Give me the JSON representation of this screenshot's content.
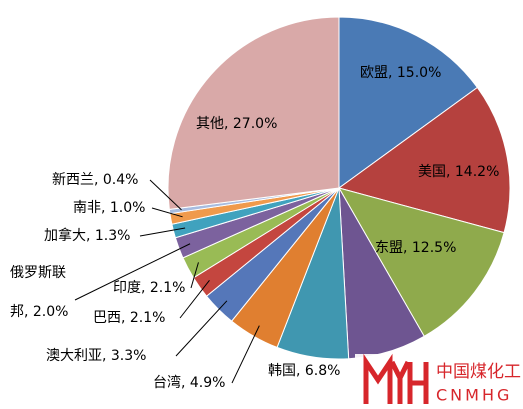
{
  "chart_data": {
    "type": "pie",
    "categories": [
      "欧盟, 15.0%",
      "美国, 14.2%",
      "东盟, 12.5%",
      null,
      "韩国, 6.8%",
      "台湾, 4.9%",
      "澳大利亚, 3.3%",
      "巴西, 2.1%",
      "印度, 2.1%",
      "俄罗斯联\n邦, 2.0%",
      "加拿大, 1.3%",
      "南非, 1.0%",
      "新西兰, 0.4%",
      "其他, 27.0%"
    ],
    "values": [
      15.0,
      14.2,
      12.5,
      7.4,
      6.8,
      4.9,
      3.3,
      2.1,
      2.1,
      2.0,
      1.3,
      1.0,
      0.4,
      27.0
    ],
    "colors": [
      "#4a7ab5",
      "#b5413e",
      "#8faa4c",
      "#6e5591",
      "#4097b0",
      "#e07f30",
      "#5577b9",
      "#c4463f",
      "#99bb55",
      "#7c629e",
      "#40a2be",
      "#f09a4c",
      "#a7bce0",
      "#d9a9a8"
    ]
  },
  "watermark": {
    "name": "中国煤化工",
    "code": "CNMHG"
  }
}
